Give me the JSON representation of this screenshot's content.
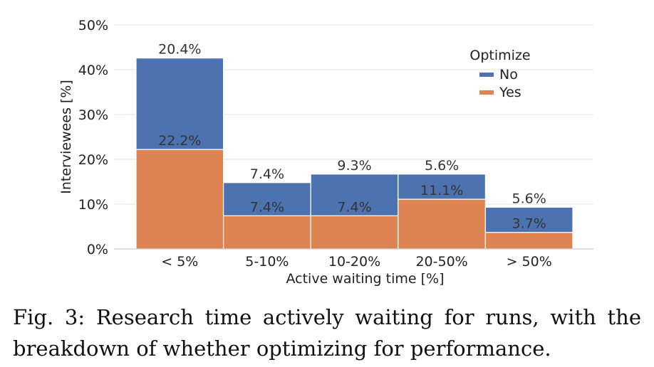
{
  "chart_data": {
    "type": "bar",
    "stacked": true,
    "categories": [
      "< 5%",
      "5-10%",
      "10-20%",
      "20-50%",
      "> 50%"
    ],
    "series": [
      {
        "name": "Yes",
        "values": [
          22.2,
          7.4,
          7.4,
          11.1,
          3.7
        ],
        "labels": [
          "22.2%",
          "7.4%",
          "7.4%",
          "11.1%",
          "3.7%"
        ],
        "color": "#dd8452"
      },
      {
        "name": "No",
        "values": [
          20.4,
          7.4,
          9.3,
          5.6,
          5.6
        ],
        "labels": [
          "20.4%",
          "7.4%",
          "9.3%",
          "5.6%",
          "5.6%"
        ],
        "color": "#4c72b0"
      }
    ],
    "xlabel": "Active waiting time [%]",
    "ylabel": "Interviewees [%]",
    "ylim": [
      0,
      50
    ],
    "yticks": [
      0,
      10,
      20,
      30,
      40,
      50
    ],
    "ytick_labels": [
      "0%",
      "10%",
      "20%",
      "30%",
      "40%",
      "50%"
    ],
    "grid": "horizontal",
    "legend": {
      "title": "Optimize",
      "entries": [
        "No",
        "Yes"
      ],
      "position": "top-right"
    }
  },
  "caption": "Fig. 3: Research time actively waiting for runs, with the breakdown of whether optimizing for performance."
}
